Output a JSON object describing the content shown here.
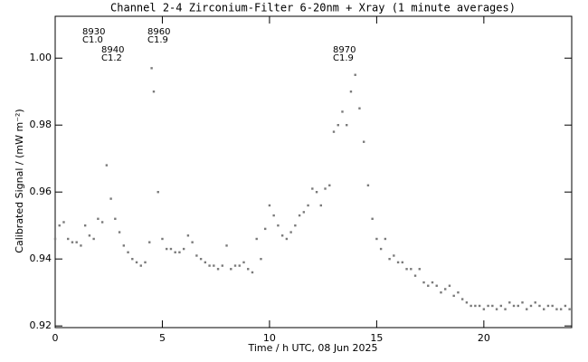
{
  "chart_data": {
    "type": "scatter",
    "title": "Channel 2-4   Zirconium-Filter   6-20nm + Xray   (1 minute averages)",
    "x_label": "Time / h UTC, 08 Jun 2025",
    "y_label": "Calibrated Signal / (mW m⁻²)",
    "color": "#7a7a7a",
    "xlim": [
      0,
      24.1
    ],
    "ylim": [
      0.9195,
      1.0125
    ],
    "xticks": [
      0,
      5,
      10,
      15,
      20
    ],
    "yticks": [
      0.92,
      0.94,
      0.96,
      0.98,
      {
        "value": 1,
        "label": "1.00"
      }
    ],
    "annotations": [
      {
        "lines": [
          "8930",
          "C1.0"
        ]
      },
      {
        "lines": [
          "8940",
          "C1.2"
        ]
      },
      {
        "lines": [
          "8960",
          "C1.9"
        ]
      },
      {
        "lines": [
          "8970",
          "C1.9"
        ]
      }
    ],
    "x": [
      0.0,
      0.2,
      0.4,
      0.6,
      0.8,
      1.0,
      1.2,
      1.4,
      1.6,
      1.8,
      2.0,
      2.2,
      2.4,
      2.6,
      2.8,
      3.0,
      3.2,
      3.4,
      3.6,
      3.8,
      4.0,
      4.2,
      4.4,
      4.5,
      4.6,
      4.8,
      5.0,
      5.2,
      5.4,
      5.6,
      5.8,
      6.0,
      6.2,
      6.4,
      6.6,
      6.8,
      7.0,
      7.2,
      7.4,
      7.6,
      7.8,
      8.0,
      8.2,
      8.4,
      8.6,
      8.8,
      9.0,
      9.2,
      9.4,
      9.6,
      9.8,
      10.0,
      10.2,
      10.4,
      10.6,
      10.8,
      11.0,
      11.2,
      11.4,
      11.6,
      11.8,
      12.0,
      12.2,
      12.4,
      12.6,
      12.8,
      13.0,
      13.2,
      13.4,
      13.6,
      13.8,
      14.0,
      14.2,
      14.4,
      14.6,
      14.8,
      15.0,
      15.2,
      15.4,
      15.6,
      15.8,
      16.0,
      16.2,
      16.4,
      16.6,
      16.8,
      17.0,
      17.2,
      17.4,
      17.6,
      17.8,
      18.0,
      18.2,
      18.4,
      18.6,
      18.8,
      19.0,
      19.2,
      19.4,
      19.6,
      19.8,
      20.0,
      20.2,
      20.4,
      20.6,
      20.8,
      21.0,
      21.2,
      21.4,
      21.6,
      21.8,
      22.0,
      22.2,
      22.4,
      22.6,
      22.8,
      23.0,
      23.2,
      23.4,
      23.6,
      23.8,
      24.0
    ],
    "values": [
      0.946,
      0.95,
      0.951,
      0.946,
      0.945,
      0.945,
      0.944,
      0.95,
      0.947,
      0.946,
      0.952,
      0.951,
      0.968,
      0.958,
      0.952,
      0.948,
      0.944,
      0.942,
      0.94,
      0.939,
      0.938,
      0.939,
      0.945,
      0.997,
      0.99,
      0.96,
      0.946,
      0.943,
      0.943,
      0.942,
      0.942,
      0.943,
      0.947,
      0.945,
      0.941,
      0.94,
      0.939,
      0.938,
      0.938,
      0.937,
      0.938,
      0.944,
      0.937,
      0.938,
      0.938,
      0.939,
      0.937,
      0.936,
      0.946,
      0.94,
      0.949,
      0.956,
      0.953,
      0.95,
      0.947,
      0.946,
      0.948,
      0.95,
      0.953,
      0.954,
      0.956,
      0.961,
      0.96,
      0.956,
      0.961,
      0.962,
      0.978,
      0.98,
      0.984,
      0.98,
      0.99,
      0.995,
      0.985,
      0.975,
      0.962,
      0.952,
      0.946,
      0.943,
      0.946,
      0.94,
      0.941,
      0.939,
      0.939,
      0.937,
      0.937,
      0.935,
      0.937,
      0.933,
      0.932,
      0.933,
      0.932,
      0.93,
      0.931,
      0.932,
      0.929,
      0.93,
      0.928,
      0.927,
      0.926,
      0.926,
      0.926,
      0.925,
      0.926,
      0.926,
      0.925,
      0.926,
      0.925,
      0.927,
      0.926,
      0.926,
      0.927,
      0.925,
      0.926,
      0.927,
      0.926,
      0.925,
      0.926,
      0.926,
      0.925,
      0.925,
      0.926,
      0.925
    ]
  }
}
